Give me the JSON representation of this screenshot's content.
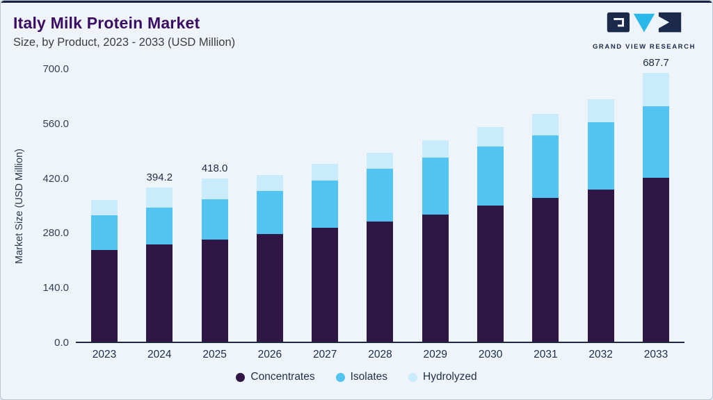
{
  "header": {
    "title": "Italy Milk Protein Market",
    "subtitle": "Size, by Product, 2023 - 2033 (USD Million)",
    "logo_text": "GRAND VIEW RESEARCH"
  },
  "colors": {
    "top_line": "#16243f",
    "background": "#eef4fa",
    "title": "#3a0d63",
    "concentrates": "#2e1745",
    "isolates": "#53c3f1",
    "hydrolyzed": "#c9ebfc",
    "logo_navy": "#1b2a4a",
    "logo_cyan": "#29b8e8"
  },
  "chart_data": {
    "type": "bar",
    "stacked": true,
    "title": "Italy Milk Protein Market Size, by Product, 2023 - 2033 (USD Million)",
    "ylabel": "Market Size (USD Million)",
    "ylim": [
      0,
      700
    ],
    "yticks": [
      0,
      140,
      280,
      420,
      560,
      700
    ],
    "ytick_labels": [
      "0.0",
      "140.0",
      "280.0",
      "420.0",
      "560.0",
      "700.0"
    ],
    "grid": false,
    "legend_position": "bottom",
    "categories": [
      "2023",
      "2024",
      "2025",
      "2026",
      "2027",
      "2028",
      "2029",
      "2030",
      "2031",
      "2032",
      "2033"
    ],
    "series": [
      {
        "name": "Concentrates",
        "color": "#2e1745",
        "values": [
          235,
          248,
          262,
          276,
          291,
          308,
          326,
          349,
          367,
          390,
          420
        ]
      },
      {
        "name": "Isolates",
        "color": "#53c3f1",
        "values": [
          88,
          95,
          102,
          110,
          122,
          135,
          144,
          150,
          161,
          172,
          182
        ]
      },
      {
        "name": "Hydrolyzed",
        "color": "#c9ebfc",
        "values": [
          40,
          51.2,
          54,
          40,
          42,
          40,
          46,
          50,
          55,
          58,
          85.7
        ]
      }
    ],
    "totals_labeled": [
      null,
      "394.2",
      "418.0",
      null,
      null,
      null,
      null,
      null,
      null,
      null,
      "687.7"
    ]
  }
}
